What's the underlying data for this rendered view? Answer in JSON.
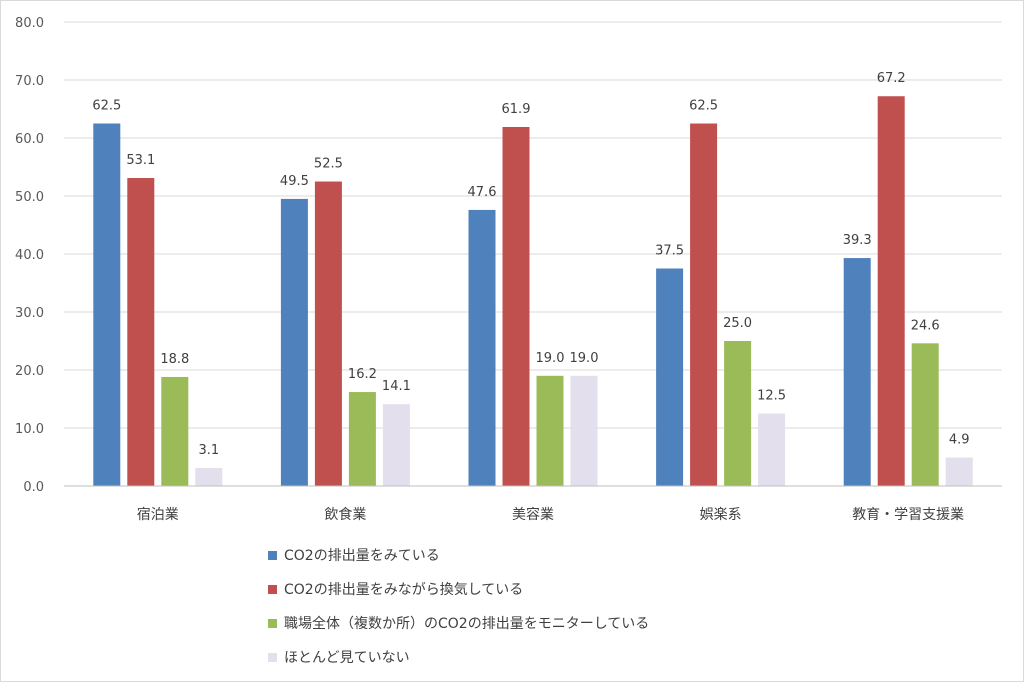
{
  "chart_data": {
    "type": "bar",
    "categories": [
      "宿泊業",
      "飲食業",
      "美容業",
      "娯楽系",
      "教育・学習支援業"
    ],
    "series": [
      {
        "name": "CO2の排出量をみている",
        "color": "#4f81bd",
        "values": [
          62.5,
          49.5,
          47.6,
          37.5,
          39.3
        ]
      },
      {
        "name": "CO2の排出量をみながら換気している",
        "color": "#c0504d",
        "values": [
          53.1,
          52.5,
          61.9,
          62.5,
          67.2
        ]
      },
      {
        "name": "職場全体（複数か所）のCO2の排出量をモニターしている",
        "color": "#9bbb59",
        "values": [
          18.8,
          16.2,
          19.0,
          25.0,
          24.6
        ]
      },
      {
        "name": "ほとんど見ていない",
        "color": "#e4dfec",
        "values": [
          3.1,
          14.1,
          19.0,
          12.5,
          4.9
        ]
      }
    ],
    "ylim": [
      0,
      80
    ],
    "yticks": [
      "0.0",
      "10.0",
      "20.0",
      "30.0",
      "40.0",
      "50.0",
      "60.0",
      "70.0",
      "80.0"
    ],
    "grid": true,
    "legend_position": "bottom",
    "data_labels": true
  }
}
